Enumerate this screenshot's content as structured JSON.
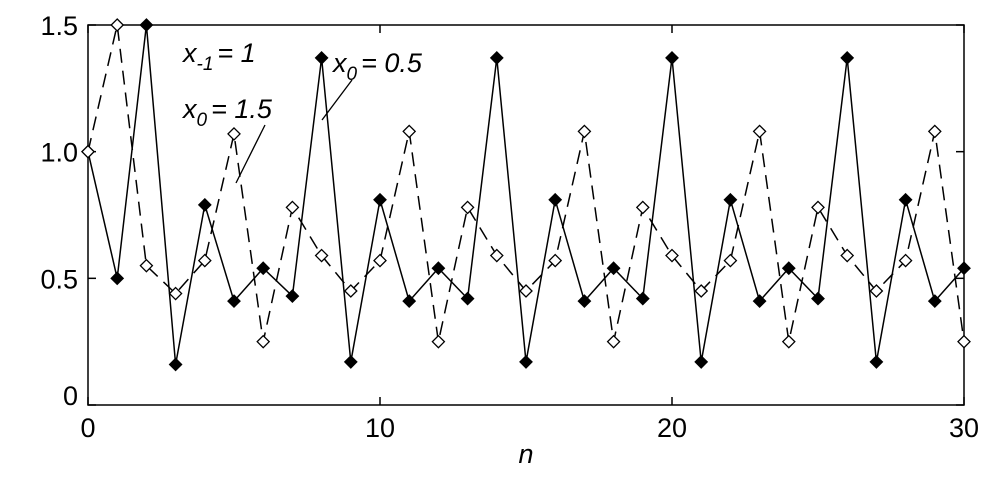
{
  "chart_data": {
    "type": "line",
    "x": [
      0,
      1,
      2,
      3,
      4,
      5,
      6,
      7,
      8,
      9,
      10,
      11,
      12,
      13,
      14,
      15,
      16,
      17,
      18,
      19,
      20,
      21,
      22,
      23,
      24,
      25,
      26,
      27,
      28,
      29,
      30
    ],
    "series": [
      {
        "color": "#000000",
        "marker": "filled-diamond",
        "dash": "solid",
        "values": [
          1.0,
          0.5,
          1.5,
          0.16,
          0.79,
          0.41,
          0.54,
          0.43,
          1.37,
          0.17,
          0.81,
          0.41,
          0.54,
          0.42,
          1.37,
          0.17,
          0.81,
          0.41,
          0.54,
          0.42,
          1.37,
          0.17,
          0.81,
          0.41,
          0.54,
          0.42,
          1.37,
          0.17,
          0.81,
          0.41,
          0.54
        ]
      },
      {
        "color": "#000000",
        "marker": "hollow-diamond",
        "dash": "dashed",
        "values": [
          1.0,
          1.5,
          0.55,
          0.44,
          0.57,
          1.07,
          0.25,
          0.78,
          0.59,
          0.45,
          0.57,
          1.08,
          0.25,
          0.78,
          0.59,
          0.45,
          0.57,
          1.08,
          0.25,
          0.78,
          0.59,
          0.45,
          0.57,
          1.08,
          0.25,
          0.78,
          0.59,
          0.45,
          0.57,
          1.08,
          0.25
        ]
      }
    ],
    "xlabel": "n",
    "xlim": [
      0,
      30
    ],
    "xticks": [
      0,
      10,
      20,
      30
    ],
    "ylim": [
      0,
      1.5
    ],
    "yticks": [
      0,
      0.5,
      {
        "value": 1,
        "label": "1.0"
      },
      1.5
    ],
    "annotations": [
      {
        "base": "x",
        "sub": "-1",
        "rest": "= 1"
      },
      {
        "base": "x",
        "sub": "0",
        "rest": "= 1.5"
      },
      {
        "base": "x",
        "sub": "0",
        "rest": "= 0.5"
      }
    ]
  }
}
